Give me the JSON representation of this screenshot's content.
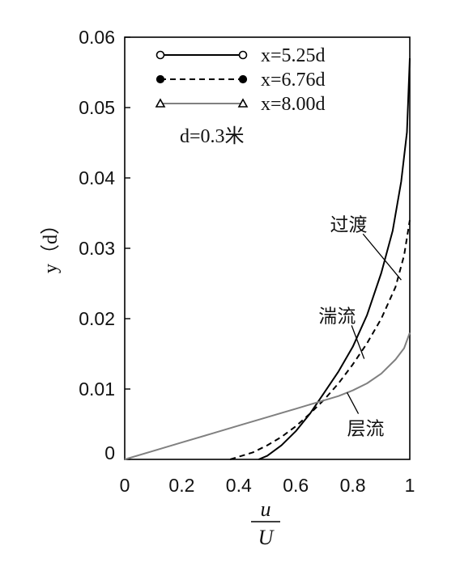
{
  "chart_data": {
    "type": "line",
    "xlabel_numerator": "u",
    "xlabel_denominator": "U",
    "ylabel": "y（d）",
    "xlim": [
      0,
      1
    ],
    "ylim": [
      0,
      0.06
    ],
    "x_ticks": [
      "0",
      "0.2",
      "0.4",
      "0.6",
      "0.8",
      "1"
    ],
    "y_ticks": [
      "0",
      "0.01",
      "0.02",
      "0.03",
      "0.04",
      "0.05",
      "0.06"
    ],
    "grid": false,
    "legend_position": "top-left",
    "legend_note": "d=0.3米",
    "series": [
      {
        "name": "x=5.25d",
        "marker": "open-circle",
        "line_style": "solid",
        "color": "#000000",
        "x": [
          0.47,
          0.5,
          0.55,
          0.6,
          0.65,
          0.7,
          0.75,
          0.8,
          0.85,
          0.9,
          0.94,
          0.97,
          0.99,
          1.0
        ],
        "y": [
          0.0,
          0.0005,
          0.002,
          0.004,
          0.0065,
          0.0095,
          0.0125,
          0.016,
          0.0205,
          0.0265,
          0.0325,
          0.0395,
          0.0465,
          0.057
        ]
      },
      {
        "name": "x=6.76d",
        "marker": "filled-circle",
        "line_style": "dashed",
        "color": "#000000",
        "x": [
          0.37,
          0.45,
          0.5,
          0.55,
          0.6,
          0.65,
          0.7,
          0.75,
          0.8,
          0.85,
          0.9,
          0.95,
          0.98,
          1.0
        ],
        "y": [
          0.0,
          0.001,
          0.002,
          0.0032,
          0.0047,
          0.0065,
          0.0085,
          0.0108,
          0.0135,
          0.0165,
          0.02,
          0.0245,
          0.029,
          0.034
        ]
      },
      {
        "name": "x=8.00d",
        "marker": "open-triangle",
        "line_style": "solid",
        "color": "#808080",
        "x": [
          0.0,
          0.1,
          0.2,
          0.3,
          0.4,
          0.5,
          0.6,
          0.7,
          0.75,
          0.8,
          0.85,
          0.9,
          0.95,
          0.98,
          1.0
        ],
        "y": [
          0.0,
          0.0012,
          0.0024,
          0.0036,
          0.0048,
          0.006,
          0.0072,
          0.0084,
          0.009,
          0.0098,
          0.0108,
          0.0122,
          0.0142,
          0.0158,
          0.018
        ]
      }
    ],
    "annotations": [
      {
        "text": "过渡",
        "x": 0.72,
        "y": 0.0325,
        "arrow_to_x": 0.97,
        "arrow_to_y": 0.0255
      },
      {
        "text": "湍流",
        "x": 0.68,
        "y": 0.0195,
        "arrow_to_x": 0.84,
        "arrow_to_y": 0.0143
      },
      {
        "text": "层流",
        "x": 0.78,
        "y": 0.0035,
        "arrow_to_x": 0.78,
        "arrow_to_y": 0.0095
      }
    ]
  }
}
